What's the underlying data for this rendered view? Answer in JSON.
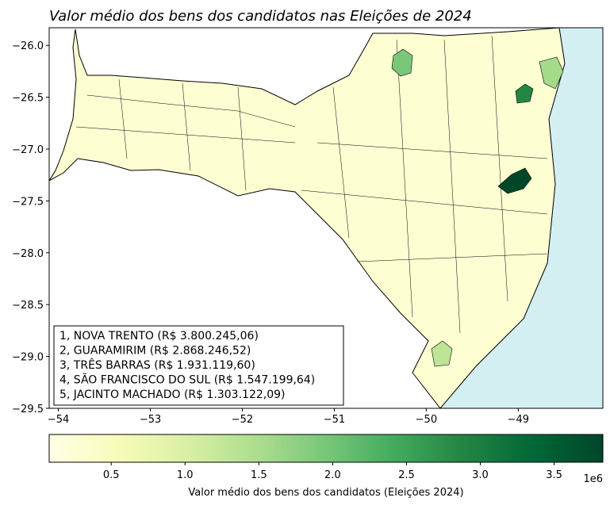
{
  "title": "Valor médio dos bens dos candidatos nas Eleições de 2024",
  "map": {
    "xlim": [
      -54.1,
      -48.08
    ],
    "ylim": [
      -29.5,
      -25.83
    ],
    "xticks": [
      {
        "value": -54,
        "label": "−54"
      },
      {
        "value": -53,
        "label": "−53"
      },
      {
        "value": -52,
        "label": "−52"
      },
      {
        "value": -51,
        "label": "−51"
      },
      {
        "value": -50,
        "label": "−50"
      },
      {
        "value": -49,
        "label": "−49"
      }
    ],
    "yticks": [
      {
        "value": -26.0,
        "label": "−26.0"
      },
      {
        "value": -26.5,
        "label": "−26.5"
      },
      {
        "value": -27.0,
        "label": "−27.0"
      },
      {
        "value": -27.5,
        "label": "−27.5"
      },
      {
        "value": -28.0,
        "label": "−28.0"
      },
      {
        "value": -28.5,
        "label": "−28.5"
      },
      {
        "value": -29.0,
        "label": "−29.0"
      },
      {
        "value": -29.5,
        "label": "−29.5"
      }
    ]
  },
  "ranking": [
    {
      "label": "1, NOVA TRENTO (R$ 3.800.245,06)",
      "value": 3800245.06
    },
    {
      "label": "2, GUARAMIRIM (R$ 2.868.246,52)",
      "value": 2868246.52
    },
    {
      "label": "3, TRÊS BARRAS (R$ 1.931.119,60)",
      "value": 1931119.6
    },
    {
      "label": "4, SÃO FRANCISCO DO SUL (R$ 1.547.199,64)",
      "value": 1547199.64
    },
    {
      "label": "5, JACINTO MACHADO (R$ 1.303.122,09)",
      "value": 1303122.09
    }
  ],
  "colorbar": {
    "label": "Valor médio dos bens dos candidatos (Eleições 2024)",
    "offset_label": "1e6",
    "colormap": "YlGn",
    "lim": [
      0.08,
      3.83
    ],
    "ticks": [
      0.5,
      {
        "value": 1.0,
        "label": "1.0"
      },
      1.5,
      {
        "value": 2.0,
        "label": "2.0"
      },
      2.5,
      {
        "value": 3.0,
        "label": "3.0"
      },
      3.5
    ]
  }
}
